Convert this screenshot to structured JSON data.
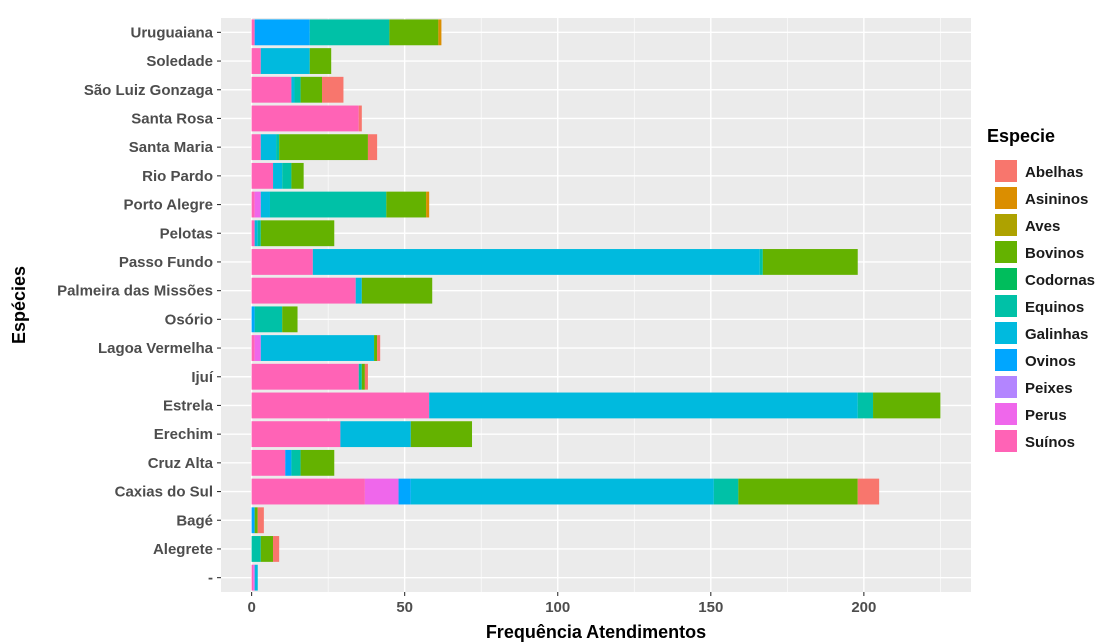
{
  "chart_data": {
    "type": "bar",
    "orientation": "horizontal",
    "stacked": true,
    "xlabel": "Frequência Atendimentos",
    "ylabel": "Espécies",
    "xlim": [
      -10,
      235
    ],
    "xticks": [
      0,
      50,
      100,
      150,
      200
    ],
    "grid": true,
    "legend": {
      "title": "Especie",
      "position": "right",
      "entries": [
        "Abelhas",
        "Asininos",
        "Aves",
        "Bovinos",
        "Codornas",
        "Equinos",
        "Galinhas",
        "Ovinos",
        "Peixes",
        "Perus",
        "Suínos"
      ]
    },
    "colors": {
      "Abelhas": "#F8766D",
      "Asininos": "#DB8E00",
      "Aves": "#AEA200",
      "Bovinos": "#64B200",
      "Codornas": "#00BD5C",
      "Equinos": "#00C1A7",
      "Galinhas": "#00BADE",
      "Ovinos": "#00A6FF",
      "Peixes": "#B385FF",
      "Perus": "#EF67EB",
      "Suínos": "#FF63B6"
    },
    "categories": [
      "Uruguaiana",
      "Soledade",
      "São Luiz Gonzaga",
      "Santa Rosa",
      "Santa Maria",
      "Rio Pardo",
      "Porto Alegre",
      "Pelotas",
      "Passo Fundo",
      "Palmeira das Missões",
      "Osório",
      "Lagoa Vermelha",
      "Ijuí",
      "Estrela",
      "Erechim",
      "Cruz Alta",
      "Caxias do Sul",
      "Bagé",
      "Alegrete",
      "-"
    ],
    "series": [
      {
        "name": "Suínos",
        "values": [
          1,
          3,
          13,
          35,
          3,
          7,
          1,
          1,
          20,
          34,
          0,
          1,
          35,
          58,
          29,
          11,
          37,
          0,
          0,
          0.5
        ]
      },
      {
        "name": "Perus",
        "values": [
          0,
          0,
          0,
          0,
          0,
          0,
          2,
          0,
          0,
          0,
          0,
          2,
          0,
          0,
          0,
          0,
          11,
          0,
          0,
          0.5
        ]
      },
      {
        "name": "Peixes",
        "values": [
          0,
          0,
          0,
          0,
          0,
          0,
          0,
          0,
          0,
          0,
          0,
          0,
          0,
          0,
          0,
          0,
          0,
          0,
          0,
          0
        ]
      },
      {
        "name": "Ovinos",
        "values": [
          18,
          0,
          0,
          0,
          0,
          0,
          0,
          0,
          0,
          0,
          1,
          0,
          0,
          0,
          0,
          2,
          4,
          1,
          0,
          0
        ]
      },
      {
        "name": "Galinhas",
        "values": [
          0,
          16,
          1,
          0,
          5,
          3,
          3,
          1,
          146,
          2,
          0,
          37,
          0,
          140,
          23,
          0,
          99,
          0,
          0,
          1
        ]
      },
      {
        "name": "Codornas",
        "values": [
          0,
          0,
          0,
          0,
          0,
          0,
          0,
          0,
          0,
          0,
          0,
          0,
          0,
          0,
          0,
          0,
          0,
          0,
          0,
          0
        ]
      },
      {
        "name": "Equinos",
        "values": [
          26,
          0,
          2,
          0,
          1,
          3,
          38,
          1,
          1,
          0,
          9,
          0,
          1,
          5,
          0,
          3,
          8,
          0,
          3,
          0
        ]
      },
      {
        "name": "Bovinos",
        "values": [
          16,
          7,
          7,
          0,
          29,
          4,
          13,
          24,
          31,
          23,
          5,
          1,
          1,
          22,
          20,
          11,
          39,
          1,
          4,
          0
        ]
      },
      {
        "name": "Aves",
        "values": [
          0,
          0,
          0,
          0,
          0,
          0,
          0,
          0,
          0,
          0,
          0,
          0,
          0,
          0,
          0,
          0,
          0,
          0,
          0,
          0
        ]
      },
      {
        "name": "Asininos",
        "values": [
          1,
          0,
          0,
          0,
          0,
          0,
          1,
          0,
          0,
          0,
          0,
          0,
          0,
          0,
          0,
          0,
          0,
          0,
          0,
          0
        ]
      },
      {
        "name": "Abelhas",
        "values": [
          0,
          0,
          7,
          1,
          3,
          0,
          0,
          0,
          0,
          0,
          0,
          1,
          1,
          0,
          0,
          0,
          7,
          2,
          2,
          0
        ]
      }
    ]
  }
}
